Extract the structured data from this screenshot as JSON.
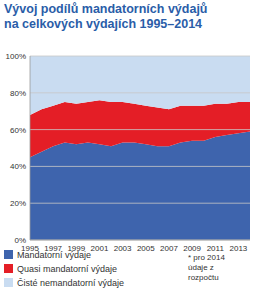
{
  "chart_data": {
    "type": "area",
    "stacked": true,
    "grid": true,
    "title": [
      "Vývoj podílů mandatorních výdajů",
      "na celkových výdajích 1995–2014"
    ],
    "categories": [
      "1995",
      null,
      "1997",
      null,
      "1999",
      null,
      "2001",
      null,
      "2003",
      null,
      "2005",
      null,
      "2007",
      null,
      "2009",
      null,
      "2011",
      null,
      "2013",
      null
    ],
    "series": [
      {
        "name": "Mandatorní výdaje",
        "color": "#3e64ad",
        "values": [
          45,
          48,
          51,
          53,
          52,
          53,
          52,
          51,
          53,
          53,
          52,
          51,
          51,
          53,
          54,
          54,
          56,
          57,
          58,
          59
        ]
      },
      {
        "name": "Quasi mandatorní výdaje",
        "color": "#e41e26",
        "values": [
          23,
          23,
          22,
          22,
          22,
          22,
          24,
          24,
          22,
          21,
          21,
          21,
          20,
          20,
          19,
          19,
          18,
          17,
          17,
          16
        ]
      },
      {
        "name": "Čisté nemandatorní výdaje",
        "color": "#c9dcf1",
        "values": [
          32,
          29,
          27,
          25,
          26,
          25,
          24,
          25,
          25,
          26,
          27,
          28,
          29,
          27,
          27,
          27,
          26,
          26,
          25,
          25
        ]
      }
    ],
    "ylim": [
      0,
      100
    ],
    "yticks": [
      {
        "value": 0,
        "label": "0%"
      },
      {
        "value": 20,
        "label": "20%"
      },
      {
        "value": 40,
        "label": "40%"
      },
      {
        "value": 60,
        "label": "60%"
      },
      {
        "value": 80,
        "label": "80%"
      },
      {
        "value": 100,
        "label": "100%"
      }
    ],
    "note": [
      "* pro 2014",
      "údaje z",
      "rozpočtu"
    ]
  }
}
